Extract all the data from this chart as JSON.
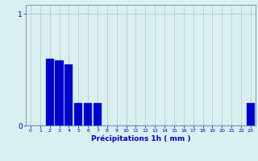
{
  "categories": [
    0,
    1,
    2,
    3,
    4,
    5,
    6,
    7,
    8,
    9,
    10,
    11,
    12,
    13,
    14,
    15,
    16,
    17,
    18,
    19,
    20,
    21,
    22,
    23
  ],
  "values": [
    0,
    0,
    0.6,
    0.58,
    0.55,
    0.2,
    0.2,
    0.2,
    0,
    0,
    0,
    0,
    0,
    0,
    0,
    0,
    0,
    0,
    0,
    0,
    0,
    0,
    0,
    0.2
  ],
  "bar_color": "#0000cc",
  "bar_edge_color": "#1144ee",
  "background_color": "#daf0f0",
  "grid_color_v": "#c0c0cc",
  "grid_color_h": "#aacccc",
  "xlabel": "Précipitations 1h ( mm )",
  "xlabel_color": "#0000cc",
  "tick_color": "#0000cc",
  "axis_color": "#7799aa",
  "ylim": [
    0,
    1.08
  ],
  "xlim": [
    -0.5,
    23.5
  ],
  "yticks": [
    0,
    1
  ],
  "ytick_labels": [
    "0",
    "1"
  ]
}
